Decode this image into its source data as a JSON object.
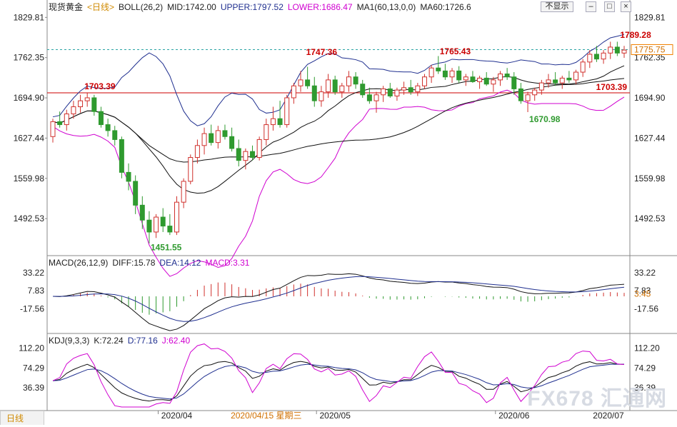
{
  "header": {
    "symbol": "现货黄金",
    "period": "<日线>",
    "boll_label": "BOLL(26,2)",
    "mid": "MID:1742.00",
    "upper": "UPPER:1797.52",
    "lower": "LOWER:1686.47",
    "ma_label": "MA1(60,13,0,0)",
    "ma60": "MA60:1726.6",
    "hide_button": "不显示"
  },
  "price_axis": [
    "1829.81",
    "1762.35",
    "1694.90",
    "1627.44",
    "1559.98",
    "1492.53"
  ],
  "price_tag": "1775.75",
  "annotations": {
    "high_1703": "1703.39",
    "resist_right": "1703.39",
    "high_1747": "1747.36",
    "high_1765": "1765.43",
    "high_1789": "1789.28",
    "low_1451": "1451.55",
    "low_1670": "1670.98"
  },
  "macd": {
    "label": "MACD(26,12,9)",
    "diff": "DIFF:15.78",
    "dea": "DEA:14.12",
    "macd": "MACD:3.31",
    "axis": [
      "33.22",
      "7.83",
      "-17.56"
    ],
    "tag": "3.45"
  },
  "kdj": {
    "label": "KDJ(9,3,3)",
    "k": "K:72.24",
    "d": "D:77.16",
    "j": "J:62.40",
    "axis": [
      "112.20",
      "74.29",
      "36.39"
    ]
  },
  "time_axis": {
    "apr": "2020/04",
    "cursor_date": "2020/04/15 星期三",
    "may": "2020/05",
    "jun": "2020/06",
    "jul": "2020/07"
  },
  "bottom_tab": "日线",
  "watermark": "FX678 汇通网",
  "colors": {
    "up": "#d0312d",
    "down": "#2f9a2f",
    "boll_upper": "#1f2f8f",
    "boll_lower": "#d000d0",
    "mid": "#111111",
    "ma60": "#111111",
    "resist": "#cc0000"
  },
  "chart_data": {
    "type": "candlestick",
    "ylim": [
      1440,
      1835
    ],
    "candles": [
      [
        1630,
        1660,
        1620,
        1655
      ],
      [
        1655,
        1672,
        1645,
        1650
      ],
      [
        1650,
        1675,
        1640,
        1668
      ],
      [
        1668,
        1690,
        1660,
        1680
      ],
      [
        1680,
        1700,
        1670,
        1690
      ],
      [
        1690,
        1703,
        1680,
        1695
      ],
      [
        1695,
        1700,
        1665,
        1672
      ],
      [
        1672,
        1680,
        1645,
        1650
      ],
      [
        1650,
        1660,
        1630,
        1640
      ],
      [
        1640,
        1648,
        1615,
        1625
      ],
      [
        1625,
        1630,
        1560,
        1570
      ],
      [
        1570,
        1585,
        1540,
        1555
      ],
      [
        1555,
        1565,
        1500,
        1515
      ],
      [
        1515,
        1530,
        1475,
        1490
      ],
      [
        1490,
        1505,
        1451,
        1470
      ],
      [
        1470,
        1500,
        1460,
        1495
      ],
      [
        1495,
        1510,
        1470,
        1480
      ],
      [
        1480,
        1500,
        1465,
        1470
      ],
      [
        1470,
        1530,
        1465,
        1520
      ],
      [
        1520,
        1560,
        1510,
        1555
      ],
      [
        1555,
        1600,
        1550,
        1595
      ],
      [
        1595,
        1625,
        1585,
        1615
      ],
      [
        1615,
        1645,
        1600,
        1635
      ],
      [
        1635,
        1650,
        1615,
        1620
      ],
      [
        1620,
        1648,
        1610,
        1640
      ],
      [
        1640,
        1650,
        1625,
        1630
      ],
      [
        1630,
        1645,
        1605,
        1610
      ],
      [
        1610,
        1625,
        1580,
        1590
      ],
      [
        1590,
        1610,
        1575,
        1605
      ],
      [
        1605,
        1615,
        1590,
        1595
      ],
      [
        1595,
        1630,
        1590,
        1625
      ],
      [
        1625,
        1660,
        1615,
        1650
      ],
      [
        1650,
        1680,
        1640,
        1660
      ],
      [
        1660,
        1690,
        1645,
        1650
      ],
      [
        1650,
        1700,
        1645,
        1695
      ],
      [
        1695,
        1720,
        1685,
        1715
      ],
      [
        1715,
        1740,
        1705,
        1725
      ],
      [
        1725,
        1747,
        1710,
        1715
      ],
      [
        1715,
        1730,
        1680,
        1690
      ],
      [
        1690,
        1715,
        1680,
        1705
      ],
      [
        1705,
        1735,
        1695,
        1725
      ],
      [
        1725,
        1732,
        1700,
        1705
      ],
      [
        1705,
        1720,
        1695,
        1715
      ],
      [
        1715,
        1740,
        1705,
        1730
      ],
      [
        1730,
        1738,
        1710,
        1718
      ],
      [
        1718,
        1725,
        1695,
        1700
      ],
      [
        1700,
        1712,
        1685,
        1690
      ],
      [
        1690,
        1705,
        1670,
        1700
      ],
      [
        1700,
        1715,
        1688,
        1710
      ],
      [
        1710,
        1720,
        1695,
        1698
      ],
      [
        1698,
        1712,
        1690,
        1708
      ],
      [
        1708,
        1722,
        1700,
        1712
      ],
      [
        1712,
        1725,
        1700,
        1705
      ],
      [
        1705,
        1720,
        1698,
        1715
      ],
      [
        1715,
        1735,
        1710,
        1730
      ],
      [
        1730,
        1750,
        1720,
        1745
      ],
      [
        1745,
        1765,
        1735,
        1740
      ],
      [
        1740,
        1752,
        1725,
        1730
      ],
      [
        1730,
        1745,
        1720,
        1740
      ],
      [
        1740,
        1748,
        1720,
        1725
      ],
      [
        1725,
        1735,
        1715,
        1730
      ],
      [
        1730,
        1740,
        1720,
        1722
      ],
      [
        1722,
        1732,
        1710,
        1728
      ],
      [
        1728,
        1738,
        1715,
        1718
      ],
      [
        1718,
        1730,
        1705,
        1725
      ],
      [
        1725,
        1740,
        1715,
        1735
      ],
      [
        1735,
        1745,
        1725,
        1730
      ],
      [
        1730,
        1738,
        1700,
        1710
      ],
      [
        1710,
        1720,
        1685,
        1690
      ],
      [
        1690,
        1705,
        1671,
        1700
      ],
      [
        1700,
        1712,
        1690,
        1708
      ],
      [
        1708,
        1725,
        1700,
        1720
      ],
      [
        1720,
        1735,
        1712,
        1725
      ],
      [
        1725,
        1738,
        1715,
        1720
      ],
      [
        1720,
        1732,
        1710,
        1728
      ],
      [
        1728,
        1740,
        1720,
        1725
      ],
      [
        1725,
        1742,
        1718,
        1738
      ],
      [
        1738,
        1760,
        1730,
        1755
      ],
      [
        1755,
        1775,
        1745,
        1768
      ],
      [
        1768,
        1782,
        1755,
        1760
      ],
      [
        1760,
        1775,
        1752,
        1770
      ],
      [
        1770,
        1789,
        1760,
        1780
      ],
      [
        1780,
        1789,
        1765,
        1770
      ],
      [
        1770,
        1782,
        1762,
        1775
      ]
    ],
    "macd_hist_count": 84,
    "x_labels": [
      "2020/04",
      "2020/05",
      "2020/06",
      "2020/07"
    ]
  }
}
